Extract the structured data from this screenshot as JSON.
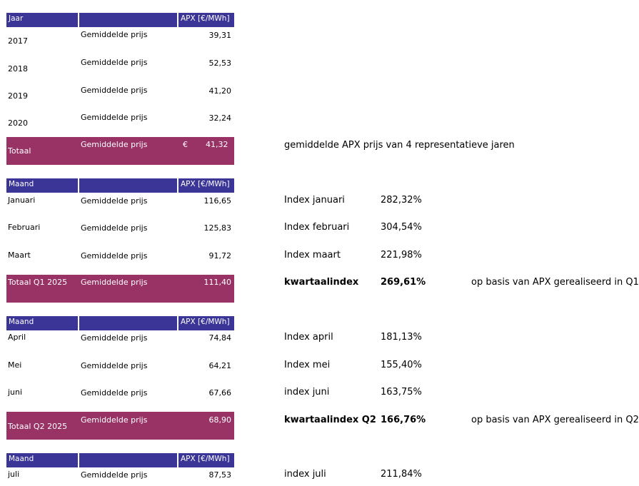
{
  "headers": {
    "year_label": "Jaar",
    "month_label": "Maand",
    "apx_label": "APX [€/MWh]"
  },
  "years": [
    {
      "year": "2017",
      "label": "Gemiddelde prijs",
      "value": "39,31"
    },
    {
      "year": "2018",
      "label": "Gemiddelde prijs",
      "value": "52,53"
    },
    {
      "year": "2019",
      "label": "Gemiddelde prijs",
      "value": "41,20"
    },
    {
      "year": "2020",
      "label": "Gemiddelde prijs",
      "value": "32,24"
    }
  ],
  "year_total": {
    "label": "Totaal",
    "desc": "Gemiddelde prijs",
    "currency": "€",
    "value": "41,32",
    "note": "gemiddelde APX prijs van 4 representatieve jaren"
  },
  "q1": {
    "months": [
      {
        "month": "Januari",
        "label": "Gemiddelde prijs",
        "value": "116,65",
        "index_label": "Index januari",
        "index": "282,32%"
      },
      {
        "month": "Februari",
        "label": "Gemiddelde prijs",
        "value": "125,83",
        "index_label": "Index februari",
        "index": "304,54%"
      },
      {
        "month": "Maart",
        "label": "Gemiddelde prijs",
        "value": "91,72",
        "index_label": "Index maart",
        "index": "221,98%"
      }
    ],
    "total": {
      "label": "Totaal Q1 2025",
      "desc": "Gemiddelde prijs",
      "value": "111,40",
      "index_label": "kwartaalindex",
      "index": "269,61%",
      "note": "op basis van APX gerealiseerd in Q1"
    }
  },
  "q2": {
    "months": [
      {
        "month": "April",
        "label": "Gemiddelde prijs",
        "value": "74,84",
        "index_label": "Index april",
        "index": "181,13%"
      },
      {
        "month": "Mei",
        "label": "Gemiddelde prijs",
        "value": "64,21",
        "index_label": "Index mei",
        "index": "155,40%"
      },
      {
        "month": "juni",
        "label": "Gemiddelde prijs",
        "value": "67,66",
        "index_label": "index juni",
        "index": "163,75%"
      }
    ],
    "total": {
      "label": "Totaal Q2 2025",
      "desc": "Gemiddelde prijs",
      "value": "68,90",
      "index_label": "kwartaalindex Q2",
      "index": "166,76%",
      "note": "op basis van APX gerealiseerd in Q2"
    }
  },
  "q3": {
    "months": [
      {
        "month": "juli",
        "label": "Gemiddelde prijs",
        "value": "87,53",
        "index_label": "index juli",
        "index": "211,84%"
      }
    ]
  },
  "colors": {
    "header_bg": "#3b3597",
    "total_bg": "#993366"
  }
}
